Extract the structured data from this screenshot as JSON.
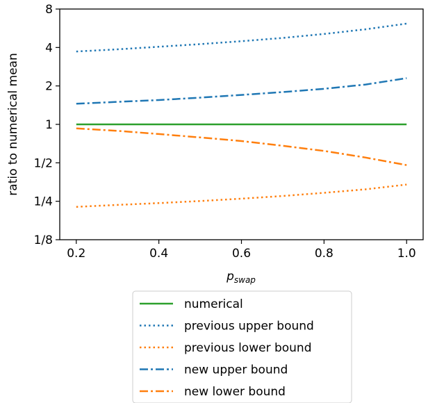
{
  "chart_data": {
    "type": "line",
    "ylabel": "ratio to numerical mean",
    "xlabel_main": "p",
    "xlabel_sub": "swap",
    "y_scale": "log2",
    "xlim": [
      0.16,
      1.04
    ],
    "ylim": [
      0.125,
      8
    ],
    "grid": false,
    "legend_position": "below",
    "x_ticks": [
      0.2,
      0.4,
      0.6,
      0.8,
      1.0
    ],
    "x_tick_labels": [
      "0.2",
      "0.4",
      "0.6",
      "0.8",
      "1.0"
    ],
    "y_ticks": [
      0.125,
      0.25,
      0.5,
      1,
      2,
      4,
      8
    ],
    "y_tick_labels": [
      "1/8",
      "1/4",
      "1/2",
      "1",
      "2",
      "4",
      "8"
    ],
    "x": [
      0.2,
      0.3,
      0.4,
      0.5,
      0.6,
      0.7,
      0.8,
      0.9,
      1.0
    ],
    "series": [
      {
        "name": "numerical",
        "color": "#2ca02c",
        "style": "solid",
        "values": [
          1,
          1,
          1,
          1,
          1,
          1,
          1,
          1,
          1
        ]
      },
      {
        "name": "previous upper bound",
        "color": "#1f77b4",
        "style": "dotted",
        "values": [
          3.72,
          3.87,
          4.05,
          4.25,
          4.48,
          4.75,
          5.1,
          5.55,
          6.15
        ]
      },
      {
        "name": "previous lower bound",
        "color": "#ff7f0e",
        "style": "dotted",
        "values": [
          0.226,
          0.234,
          0.242,
          0.251,
          0.262,
          0.275,
          0.291,
          0.31,
          0.338
        ]
      },
      {
        "name": "new upper bound",
        "color": "#1f77b4",
        "style": "dashdot",
        "values": [
          1.45,
          1.5,
          1.55,
          1.62,
          1.7,
          1.79,
          1.9,
          2.05,
          2.3
        ]
      },
      {
        "name": "new lower bound",
        "color": "#ff7f0e",
        "style": "dashdot",
        "values": [
          0.93,
          0.89,
          0.84,
          0.79,
          0.74,
          0.68,
          0.62,
          0.55,
          0.48
        ]
      }
    ]
  }
}
